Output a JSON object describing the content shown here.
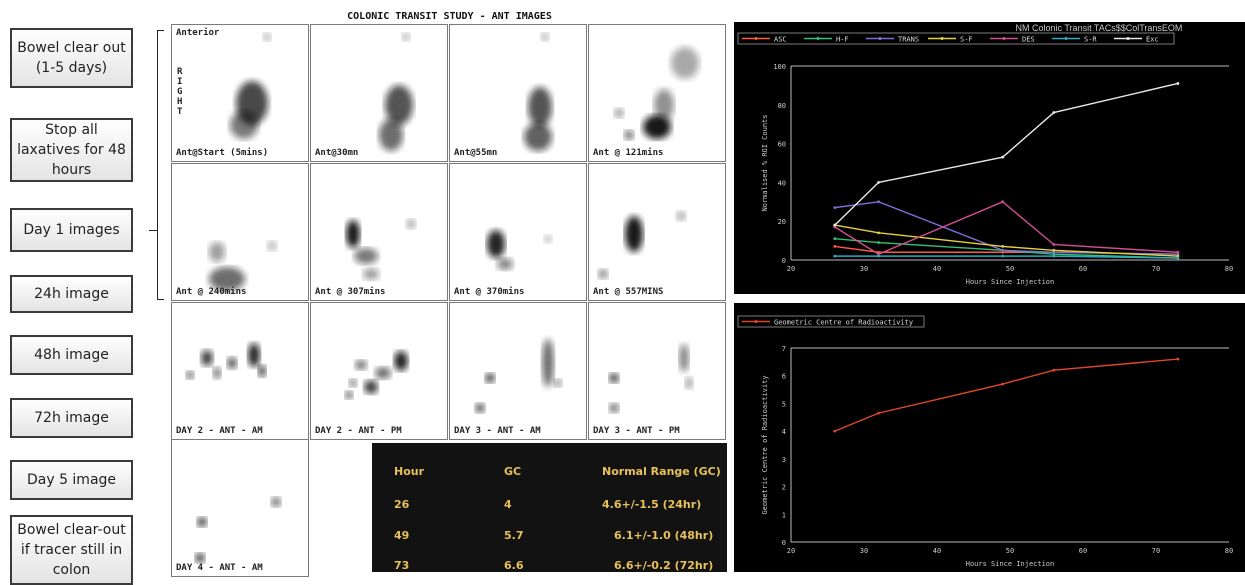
{
  "steps": [
    "Bowel clear out (1-5 days)",
    "Stop all laxatives for 48 hours",
    "Day 1 images",
    "24h image",
    "48h image",
    "72h image",
    "Day 5 image",
    "Bowel clear-out if tracer still in colon"
  ],
  "scan": {
    "title": "COLONIC TRANSIT STUDY - ANT IMAGES",
    "anterior_label": "Anterior",
    "right_label": "RIGHT",
    "captions": [
      "Ant@Start (5mins)",
      "Ant@30mn",
      "Ant@55mn",
      "Ant @ 121mins",
      "Ant @ 240mins",
      "Ant @ 307mins",
      "Ant @ 370mins",
      "Ant @ 557MINS",
      "DAY 2 - ANT - AM",
      "DAY 2 - ANT - PM",
      "DAY 3 - ANT - AM",
      "DAY 3 - ANT - PM",
      "DAY 4 - ANT - AM"
    ]
  },
  "gc_table": {
    "headers": [
      "Hour",
      "GC",
      "Normal Range (GC)"
    ],
    "rows": [
      [
        "26",
        "4",
        "4.6+/-1.5 (24hr)"
      ],
      [
        "49",
        "5.7",
        "6.1+/-1.0 (48hr)"
      ],
      [
        "73",
        "6.6",
        "6.6+/-0.2 (72hr)"
      ]
    ]
  },
  "chart_data": [
    {
      "type": "line",
      "title": "NM Colonic Transit TACs$$ColTransEOM",
      "xlabel": "Hours Since Injection",
      "ylabel": "Normalised % ROI Counts",
      "xlim": [
        20,
        80
      ],
      "ylim": [
        0,
        100
      ],
      "xticks": [
        20,
        30,
        40,
        50,
        60,
        70,
        80
      ],
      "yticks": [
        0,
        20,
        40,
        60,
        80,
        100
      ],
      "legend_position": "top",
      "series": [
        {
          "name": "ASC",
          "color": "#ff5a3c",
          "x": [
            26,
            32,
            49,
            56,
            73
          ],
          "y": [
            7,
            4,
            4,
            4,
            3
          ]
        },
        {
          "name": "H-F",
          "color": "#33c07a",
          "x": [
            26,
            32,
            49,
            56,
            73
          ],
          "y": [
            11,
            9,
            5,
            3,
            1
          ]
        },
        {
          "name": "TRANS",
          "color": "#7a6fd6",
          "x": [
            26,
            32,
            49,
            56,
            73
          ],
          "y": [
            27,
            30,
            5,
            4,
            3
          ]
        },
        {
          "name": "S-F",
          "color": "#e6d23a",
          "x": [
            26,
            32,
            49,
            56,
            73
          ],
          "y": [
            18,
            14,
            7,
            5,
            2
          ]
        },
        {
          "name": "DES",
          "color": "#d24f92",
          "x": [
            26,
            32,
            49,
            56,
            73
          ],
          "y": [
            17,
            3,
            30,
            8,
            4
          ]
        },
        {
          "name": "S-R",
          "color": "#2fa9c7",
          "x": [
            26,
            32,
            49,
            56,
            73
          ],
          "y": [
            2,
            2,
            2,
            2,
            1
          ]
        },
        {
          "name": "Exc",
          "color": "#e8e8e8",
          "x": [
            26,
            32,
            49,
            56,
            73
          ],
          "y": [
            18,
            40,
            53,
            76,
            91
          ]
        }
      ]
    },
    {
      "type": "line",
      "title": "",
      "xlabel": "Hours Since Injection",
      "ylabel": "Geometric Centre of Radioactivity",
      "xlim": [
        20,
        80
      ],
      "ylim": [
        0,
        7
      ],
      "xticks": [
        20,
        30,
        40,
        50,
        60,
        70,
        80
      ],
      "yticks": [
        0,
        1,
        2,
        3,
        4,
        5,
        6,
        7
      ],
      "legend_position": "top-left",
      "series": [
        {
          "name": "Geometric Centre of Radioactivity",
          "color": "#e2462a",
          "x": [
            26,
            32,
            49,
            56,
            73
          ],
          "y": [
            4.0,
            4.65,
            5.7,
            6.2,
            6.6
          ]
        }
      ]
    }
  ]
}
